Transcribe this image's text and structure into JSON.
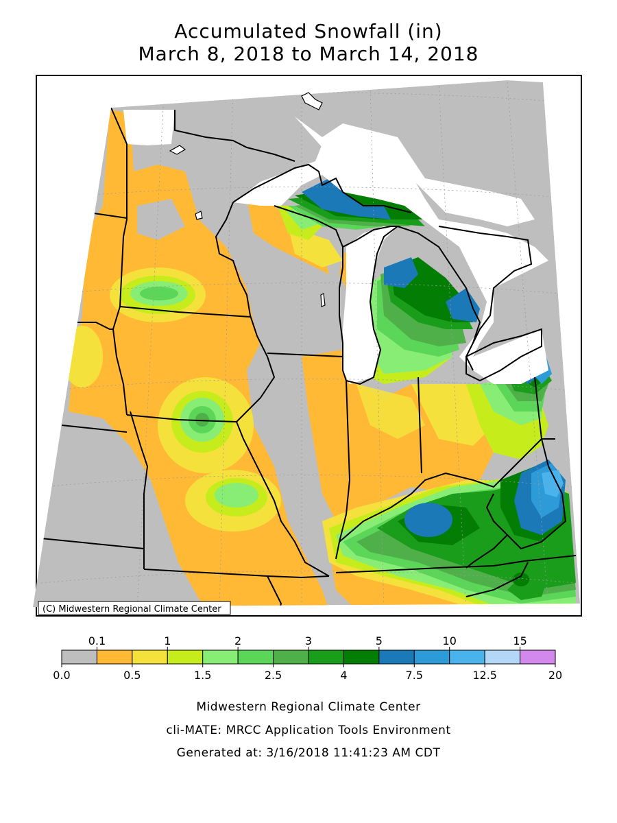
{
  "title_line1": "Accumulated Snowfall (in)",
  "title_line2": "March 8, 2018 to March 14, 2018",
  "copyright": "(C) Midwestern Regional Climate Center",
  "legend": {
    "top_labels": [
      "0.1",
      "1",
      "2",
      "3",
      "5",
      "10",
      "15"
    ],
    "bottom_labels": [
      "0.0",
      "0.5",
      "1.5",
      "2.5",
      "4",
      "7.5",
      "12.5",
      "20"
    ],
    "colors": [
      "#bebebe",
      "#ffb935",
      "#f5e13c",
      "#c6ec1c",
      "#88ed75",
      "#5cd659",
      "#4fb049",
      "#1a9d1a",
      "#047d04",
      "#1b79b8",
      "#2e9bd9",
      "#4bb3ec",
      "#b3d8f7",
      "#d388ed"
    ]
  },
  "footer": {
    "line1": "Midwestern Regional Climate Center",
    "line2": "cli-MATE: MRCC Application Tools Environment",
    "line3": "Generated at: 3/16/2018 11:41:23 AM CDT"
  }
}
